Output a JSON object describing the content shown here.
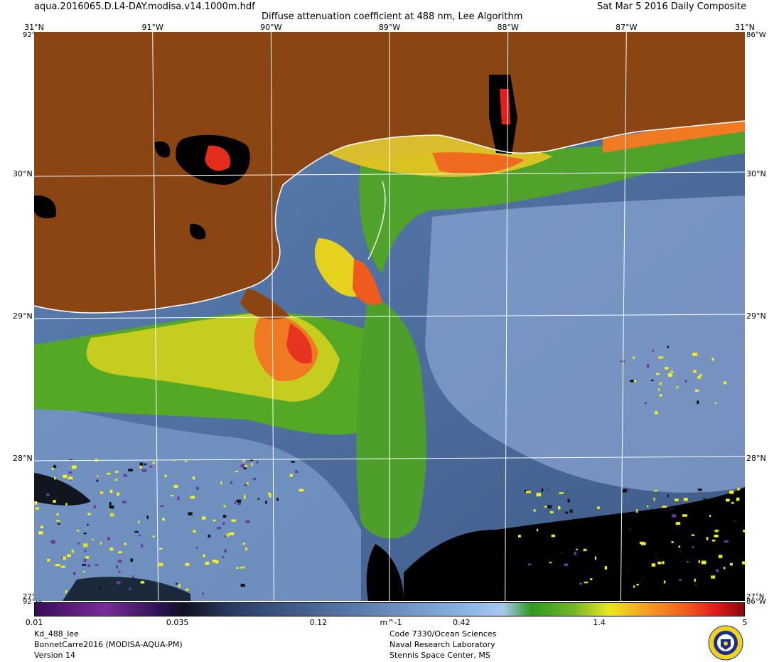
{
  "header": {
    "filename": "aqua.2016065.D.L4-DAY.modisa.v14.1000m.hdf",
    "title": "Diffuse attenuation coefficient at 488 nm, Lee Algorithm",
    "date": "Sat Mar  5 2016 Daily Composite"
  },
  "map": {
    "lat_labels": [
      {
        "text": "31°N",
        "lat": 31
      },
      {
        "text": "30°N",
        "lat": 30
      },
      {
        "text": "29°N",
        "lat": 29
      },
      {
        "text": "28°N",
        "lat": 28
      }
    ],
    "lon_labels": [
      {
        "text": "91°W",
        "lon": -91
      },
      {
        "text": "90°W",
        "lon": -90
      },
      {
        "text": "89°W",
        "lon": -89
      },
      {
        "text": "88°W",
        "lon": -88
      },
      {
        "text": "87°W",
        "lon": -87
      }
    ],
    "corner_labels": {
      "top_left": "31°N",
      "top_right": "31°N",
      "bottom_left": "27°N",
      "bottom_right": "27°N",
      "left_lon_top": "92°W",
      "right_lon_top": "86°W",
      "left_lon_bottom": "92°W",
      "right_lon_bottom": "86°W"
    },
    "colors": {
      "land": "#8b4513",
      "no_data": "#000000",
      "coast": "#ffffff",
      "graticule": "#ffffff"
    }
  },
  "colorbar": {
    "ticks": [
      {
        "text": "0.01",
        "value": 0.01
      },
      {
        "text": "0.035",
        "value": 0.035
      },
      {
        "text": "0.12",
        "value": 0.12
      },
      {
        "text": "0.42",
        "value": 0.42
      },
      {
        "text": "1.4",
        "value": 1.4
      },
      {
        "text": "5",
        "value": 5
      }
    ],
    "unit": "m^-1",
    "scale": "log",
    "range": [
      0.01,
      5
    ]
  },
  "footer": {
    "product": "Kd_488_lee",
    "region": "BonnetCarre2016 (MODISA-AQUA-PM)",
    "version": "Version 14",
    "org_line1": "Code 7330/Ocean Sciences",
    "org_line2": "Naval Research Laboratory",
    "org_line3": "Stennis Space Center, MS",
    "seal_icon": "nrl-seal-icon"
  }
}
